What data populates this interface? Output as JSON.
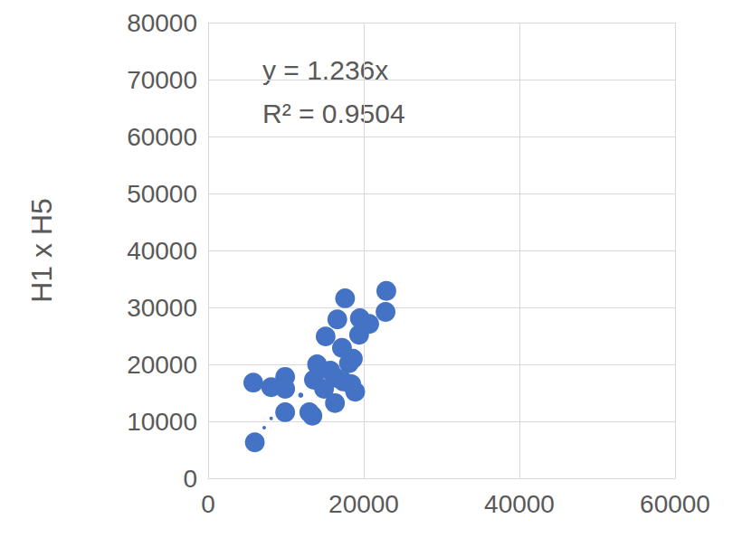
{
  "chart_data": {
    "type": "scatter",
    "y_label": "H1 x H5",
    "annotations": [
      "y = 1.236x",
      "R² = 0.9504"
    ],
    "color": "#4472c4",
    "marker": "circle",
    "grid": true,
    "xlim": [
      0,
      60000
    ],
    "xticks": [
      0,
      20000,
      40000,
      60000
    ],
    "ylim": [
      0,
      80000
    ],
    "yticks": [
      0,
      10000,
      20000,
      30000,
      40000,
      50000,
      60000,
      70000,
      80000
    ],
    "x": [
      6000,
      5800,
      8100,
      9900,
      9900,
      9900,
      13000,
      13400,
      14000,
      13600,
      15100,
      16600,
      17600,
      16300,
      16500,
      14900,
      17200,
      18100,
      18600,
      17400,
      18900,
      18400,
      19500,
      19400,
      20700,
      22800,
      22900,
      15700,
      7200,
      8100,
      11900
    ],
    "values": [
      6300,
      16800,
      16000,
      17800,
      15700,
      11600,
      11600,
      11000,
      20000,
      17300,
      24900,
      27900,
      31600,
      13200,
      17600,
      15700,
      22900,
      20200,
      21000,
      17000,
      15200,
      16500,
      28100,
      25200,
      27100,
      29200,
      32900,
      18900,
      8900,
      10500,
      14600
    ],
    "sizes": [
      30,
      30,
      30,
      30,
      30,
      30,
      30,
      30,
      30,
      30,
      30,
      30,
      30,
      30,
      30,
      30,
      30,
      30,
      30,
      30,
      30,
      30,
      30,
      30,
      30,
      30,
      30,
      30,
      1,
      1,
      2
    ]
  }
}
